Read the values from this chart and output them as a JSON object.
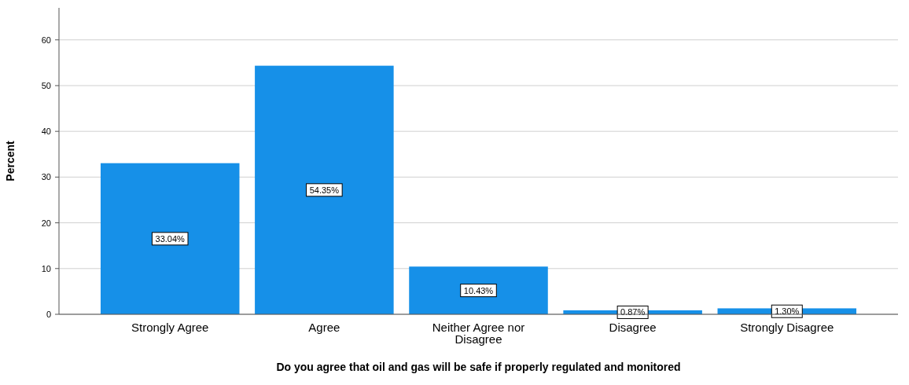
{
  "chart_data": {
    "type": "bar",
    "xlabel": "Do you agree that oil and gas will be safe if properly regulated and monitored",
    "ylabel": "Percent",
    "categories": [
      "Strongly Agree",
      "Agree",
      "Neither Agree nor Disagree",
      "Disagree",
      "Strongly Disagree"
    ],
    "values": [
      33.04,
      54.35,
      10.43,
      0.87,
      1.3
    ],
    "value_labels": [
      "33.04%",
      "54.35%",
      "10.43%",
      "0.87%",
      "1.30%"
    ],
    "color": "#1690e8",
    "ylim": [
      0,
      67
    ],
    "yticks": [
      0,
      10,
      20,
      30,
      40,
      50,
      60
    ],
    "grid": "y"
  }
}
